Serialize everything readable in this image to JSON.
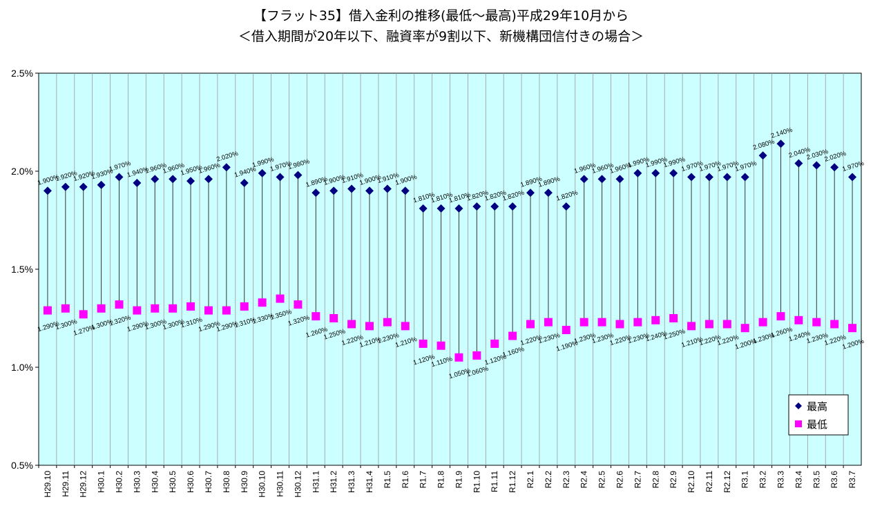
{
  "title_line1": "【フラット35】借入金利の推移(最低〜最高)平成29年10月から",
  "title_line2": "＜借入期間が20年以下、融資率が9割以下、新機構団信付きの場合＞",
  "chart_data": {
    "type": "scatter",
    "title": "【フラット35】借入金利の推移(最低〜最高)平成29年10月から",
    "subtitle": "＜借入期間が20年以下、融資率が9割以下、新機構団信付きの場合＞",
    "xlabel": "",
    "ylabel": "",
    "ylim": [
      0.5,
      2.5
    ],
    "yticks": [
      "0.5%",
      "1.0%",
      "1.5%",
      "2.0%",
      "2.5%"
    ],
    "ytick_values": [
      0.5,
      1.0,
      1.5,
      2.0,
      2.5
    ],
    "grid": "vertical",
    "legend_position": "bottom-right",
    "categories": [
      "H29.10",
      "H29.11",
      "H29.12",
      "H30.1",
      "H30.2",
      "H30.3",
      "H30.4",
      "H30.5",
      "H30.6",
      "H30.7",
      "H30.8",
      "H30.9",
      "H30.10",
      "H30.11",
      "H30.12",
      "H31.1",
      "H31.2",
      "H31.3",
      "H31.4",
      "R1.5",
      "R1.6",
      "R1.7",
      "R1.8",
      "R1.9",
      "R1.10",
      "R1.11",
      "R1.12",
      "R2.1",
      "R2.2",
      "R2.3",
      "R2.4",
      "R2.5",
      "R2.6",
      "R2.7",
      "R2.8",
      "R2.9",
      "R2.10",
      "R2.11",
      "R2.12",
      "R3.1",
      "R3.2",
      "R3.3",
      "R3.4",
      "R3.5",
      "R3.6",
      "R3.7"
    ],
    "series": [
      {
        "name": "最高",
        "color": "#000080",
        "marker": "diamond",
        "values": [
          1.9,
          1.92,
          1.92,
          1.93,
          1.97,
          1.94,
          1.96,
          1.96,
          1.95,
          1.96,
          2.02,
          1.94,
          1.99,
          1.97,
          1.98,
          1.89,
          1.9,
          1.91,
          1.9,
          1.91,
          1.9,
          1.81,
          1.81,
          1.81,
          1.82,
          1.82,
          1.82,
          1.89,
          1.89,
          1.82,
          1.96,
          1.96,
          1.96,
          1.99,
          1.99,
          1.99,
          1.97,
          1.97,
          1.97,
          1.97,
          2.08,
          2.14,
          2.04,
          2.03,
          2.02,
          1.97
        ],
        "labels": [
          "1.900%",
          "1.920%",
          "1.920%",
          "1.930%",
          "1.970%",
          "1.940%",
          "1.960%",
          "1.960%",
          "1.950%",
          "1.960%",
          "2.020%",
          "1.940%",
          "1.990%",
          "1.970%",
          "1.980%",
          "1.890%",
          "1.900%",
          "1.910%",
          "1.900%",
          "1.910%",
          "1.900%",
          "1.810%",
          "1.810%",
          "1.810%",
          "1.820%",
          "1.820%",
          "1.820%",
          "1.890%",
          "1.890%",
          "1.820%",
          "1.960%",
          "1.960%",
          "1.960%",
          "1.990%",
          "1.990%",
          "1.990%",
          "1.970%",
          "1.970%",
          "1.970%",
          "1.970%",
          "2.080%",
          "2.140%",
          "2.040%",
          "2.030%",
          "2.020%",
          "1.970%"
        ]
      },
      {
        "name": "最低",
        "color": "#FF00FF",
        "marker": "square",
        "values": [
          1.29,
          1.3,
          1.27,
          1.3,
          1.32,
          1.29,
          1.3,
          1.3,
          1.31,
          1.29,
          1.29,
          1.31,
          1.33,
          1.35,
          1.32,
          1.26,
          1.25,
          1.22,
          1.21,
          1.23,
          1.21,
          1.12,
          1.11,
          1.05,
          1.06,
          1.12,
          1.16,
          1.22,
          1.23,
          1.19,
          1.23,
          1.23,
          1.22,
          1.23,
          1.24,
          1.25,
          1.21,
          1.22,
          1.22,
          1.2,
          1.23,
          1.26,
          1.24,
          1.23,
          1.22,
          1.2
        ],
        "labels": [
          "1.290%",
          "1.300%",
          "1.270%",
          "1.300%",
          "1.320%",
          "1.290%",
          "1.300%",
          "1.300%",
          "1.310%",
          "1.290%",
          "1.290%",
          "1.310%",
          "1.330%",
          "1.350%",
          "1.320%",
          "1.260%",
          "1.250%",
          "1.220%",
          "1.210%",
          "1.230%",
          "1.210%",
          "1.120%",
          "1.110%",
          "1.050%",
          "1.060%",
          "1.120%",
          "1.160%",
          "1.220%",
          "1.230%",
          "1.190%",
          "1.230%",
          "1.230%",
          "1.220%",
          "1.230%",
          "1.240%",
          "1.250%",
          "1.210%",
          "1.220%",
          "1.220%",
          "1.200%",
          "1.230%",
          "1.260%",
          "1.240%",
          "1.230%",
          "1.220%",
          "1.200%"
        ]
      }
    ],
    "legend": [
      "最高",
      "最低"
    ]
  }
}
